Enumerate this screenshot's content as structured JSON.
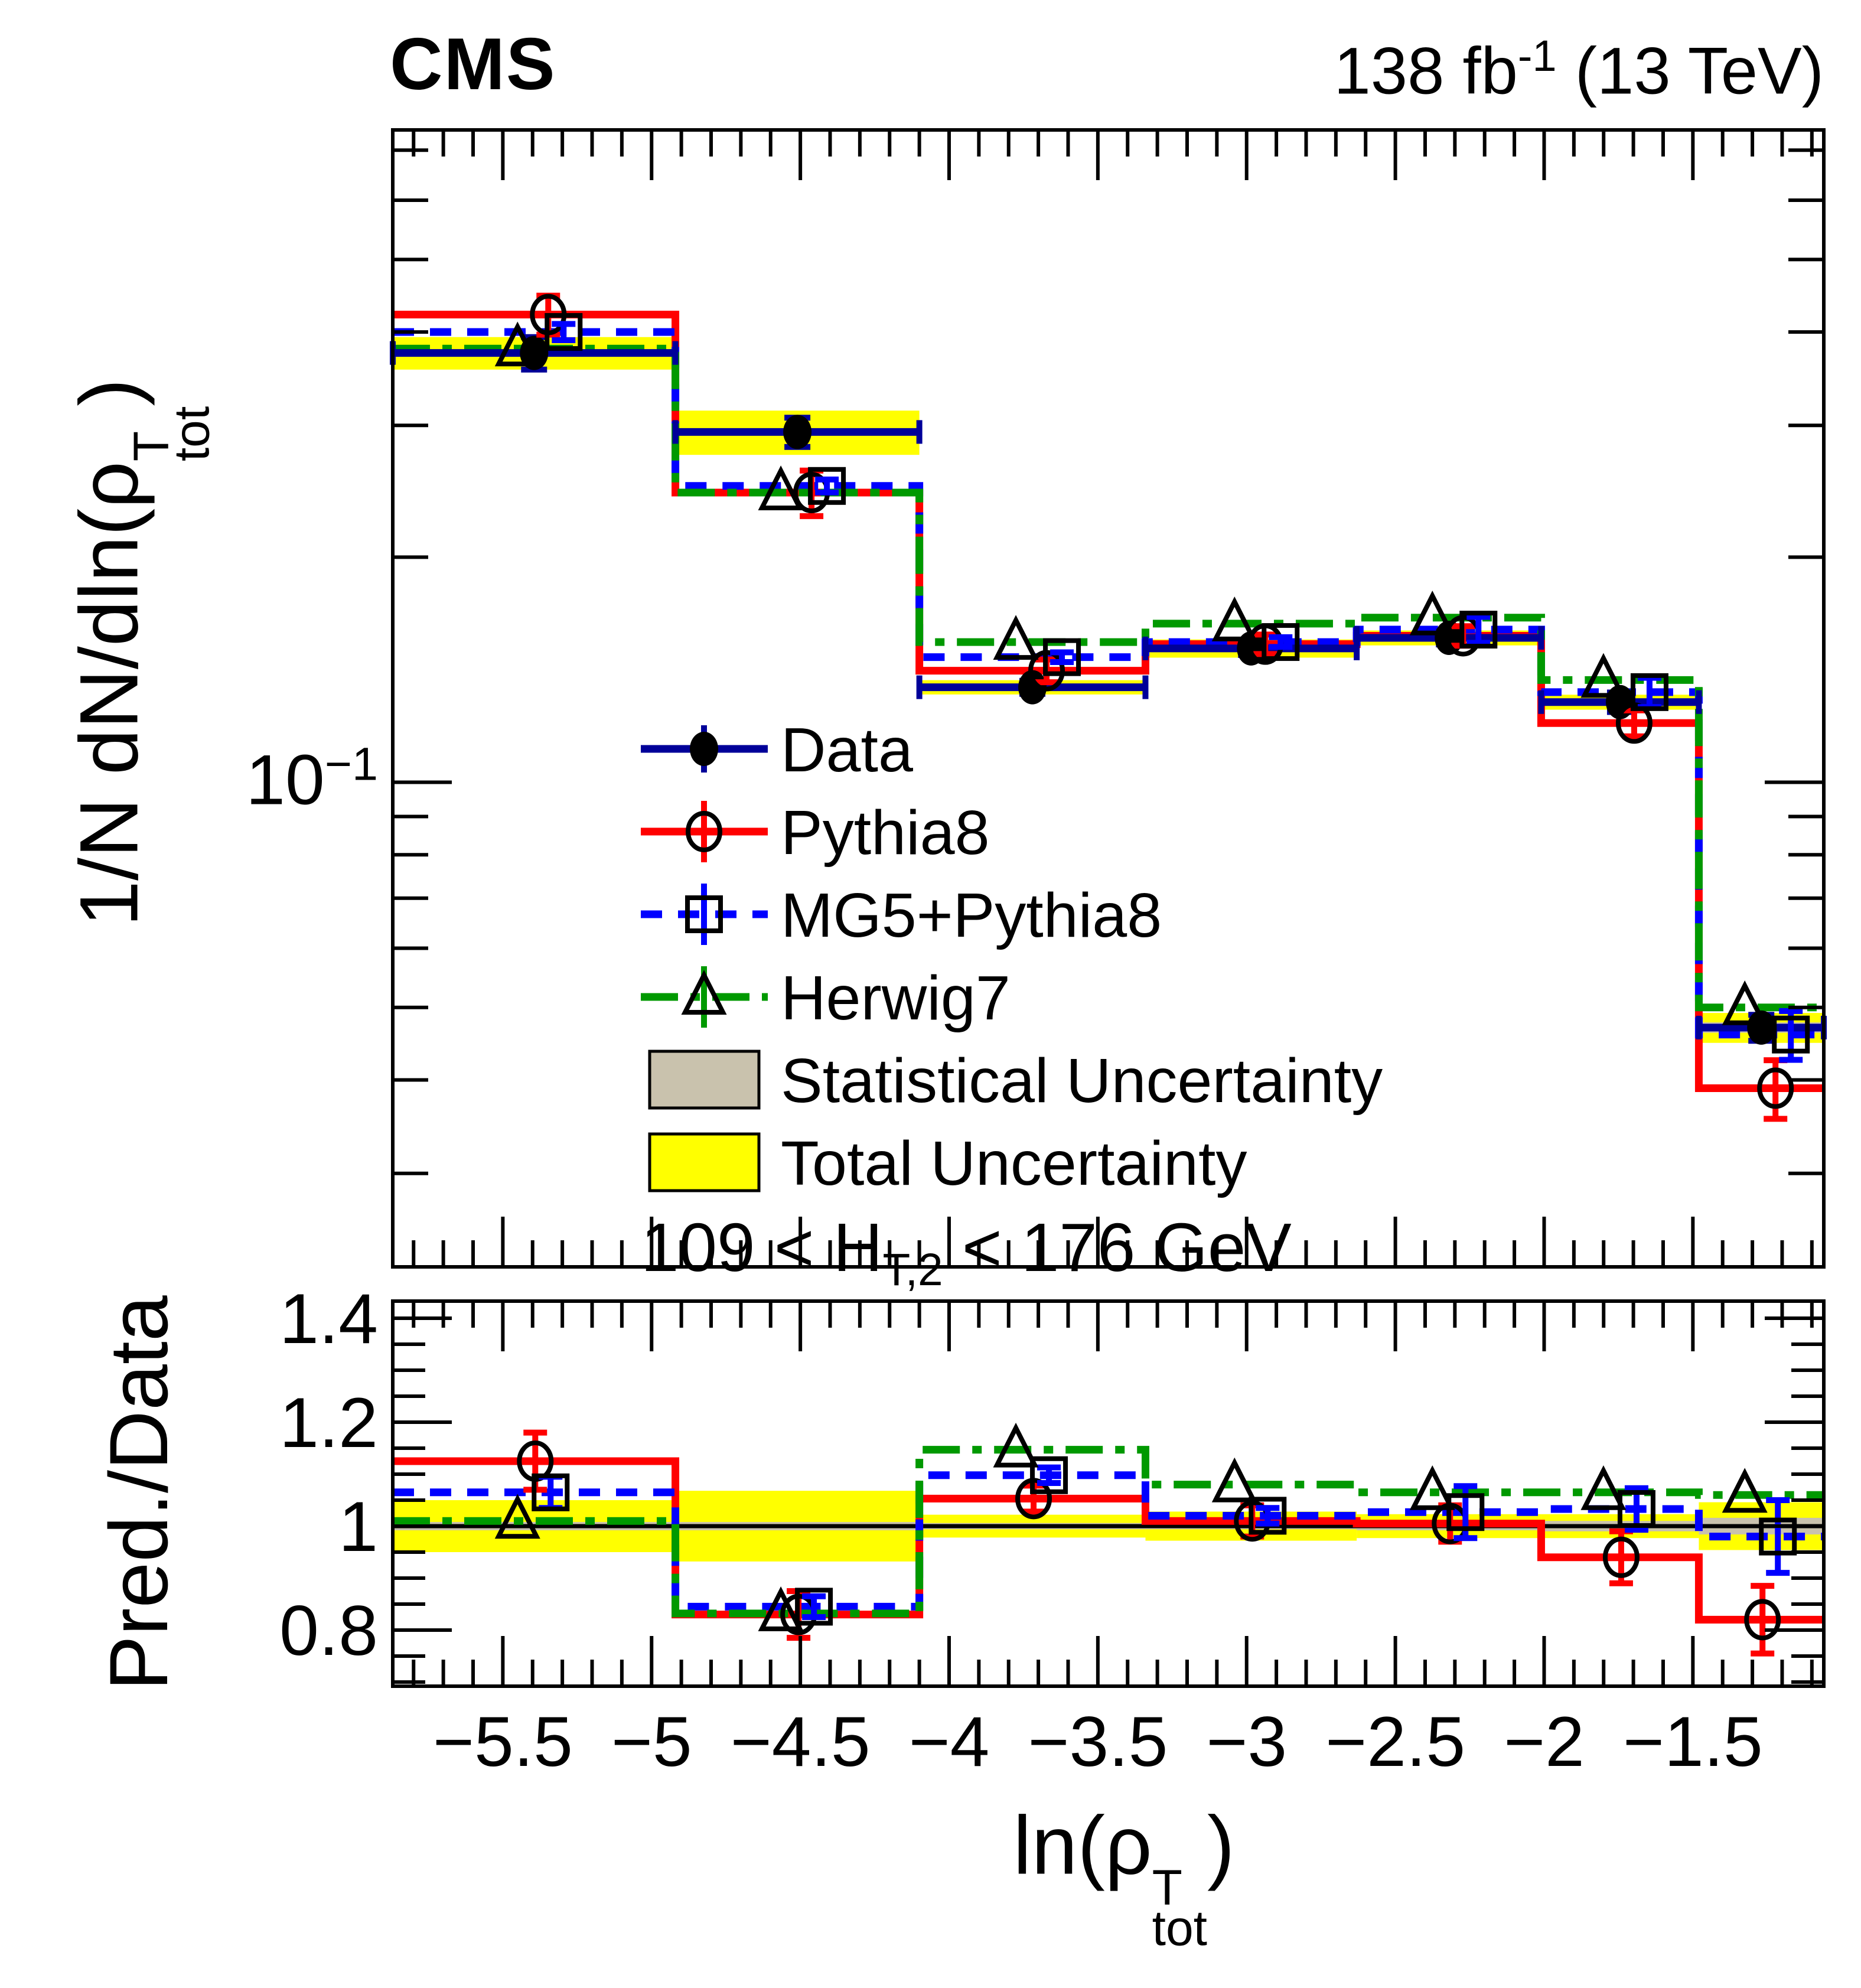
{
  "header": {
    "experiment": "CMS",
    "lumi_parts": {
      "prefix": "138 fb",
      "exp": "-1",
      "suffix": " (13 TeV)"
    }
  },
  "selection_parts": {
    "prefix": "109 < H",
    "sub": "T,2",
    "suffix": " < 176 GeV"
  },
  "chart_data": {
    "type": "histogram-with-ratio",
    "top_y_scale": "log",
    "x_title_parts": {
      "prefix": "ln(",
      "symbol": "ρ",
      "sup": "T",
      "sub": "tot",
      "suffix": ")"
    },
    "top_y_title_parts": {
      "prefix": "1/N dN/dln(",
      "symbol": "ρ",
      "sup": "T",
      "sub": "tot",
      "suffix": ")"
    },
    "ratio_y_title": "Pred./Data",
    "top_y_tick_parts": {
      "base": "10",
      "exp": "−1"
    },
    "x_range": [
      -5.87,
      -1.06
    ],
    "top_y_range": [
      0.0225,
      0.745
    ],
    "ratio_range": [
      0.692,
      1.433
    ],
    "bin_edges": [
      -5.87,
      -4.92,
      -4.1,
      -3.34,
      -2.63,
      -2.01,
      -1.48,
      -1.06
    ],
    "x_major_ticks": [
      {
        "value": -5.5,
        "label": "−5.5"
      },
      {
        "value": -5.0,
        "label": "−5"
      },
      {
        "value": -4.5,
        "label": "−4.5"
      },
      {
        "value": -4.0,
        "label": "−4"
      },
      {
        "value": -3.5,
        "label": "−3.5"
      },
      {
        "value": -3.0,
        "label": "−3"
      },
      {
        "value": -2.5,
        "label": "−2.5"
      },
      {
        "value": -2.0,
        "label": "−2"
      },
      {
        "value": -1.5,
        "label": "−1.5"
      }
    ],
    "x_minor_step": 0.1,
    "top_major_tick_value": 0.1,
    "top_minor_ticks": [
      0.03,
      0.04,
      0.05,
      0.06,
      0.07,
      0.08,
      0.09,
      0.2,
      0.3,
      0.4,
      0.5,
      0.6,
      0.7
    ],
    "ratio_major_ticks": [
      {
        "value": 0.8,
        "label": "0.8"
      },
      {
        "value": 1.0,
        "label": "1"
      },
      {
        "value": 1.2,
        "label": "1.2"
      },
      {
        "value": 1.4,
        "label": "1.4"
      }
    ],
    "ratio_minor_step": 0.05,
    "series": [
      {
        "name": "Data",
        "role": "data",
        "color": "#000099",
        "marker": "filled-circle",
        "values": [
          0.375,
          0.294,
          0.134,
          0.151,
          0.156,
          0.128,
          0.047
        ],
        "err_frac": [
          0.05,
          0.045,
          0.02,
          0.02,
          0.02,
          0.03,
          0.04
        ]
      },
      {
        "name": "Pythia8",
        "role": "mc",
        "color": "#ff0000",
        "line": "solid",
        "marker": "open-circle",
        "values": [
          0.422,
          0.244,
          0.141,
          0.153,
          0.157,
          0.12,
          0.039
        ],
        "err_frac": [
          0.06,
          0.07,
          0.035,
          0.03,
          0.03,
          0.04,
          0.09
        ],
        "ratio": [
          1.125,
          0.83,
          1.053,
          1.01,
          1.005,
          0.94,
          0.82
        ],
        "ratio_err": [
          0.055,
          0.045,
          0.025,
          0.03,
          0.035,
          0.05,
          0.065
        ]
      },
      {
        "name": "MG5+Pythia8",
        "role": "mc",
        "color": "#0000ff",
        "line": "dashed",
        "marker": "open-square",
        "values": [
          0.4,
          0.249,
          0.147,
          0.154,
          0.16,
          0.132,
          0.046
        ],
        "err_frac": [
          0.025,
          0.02,
          0.015,
          0.015,
          0.04,
          0.045,
          0.075
        ],
        "ratio": [
          1.065,
          0.845,
          1.098,
          1.02,
          1.027,
          1.033,
          0.98
        ],
        "ratio_err": [
          0.03,
          0.02,
          0.015,
          0.015,
          0.05,
          0.04,
          0.07
        ]
      },
      {
        "name": "Herwig7",
        "role": "mc",
        "color": "#009900",
        "line": "dashdot",
        "marker": "open-triangle",
        "values": [
          0.38,
          0.244,
          0.154,
          0.163,
          0.166,
          0.137,
          0.05
        ],
        "err_frac": [
          0,
          0,
          0,
          0,
          0,
          0,
          0
        ],
        "ratio": [
          1.01,
          0.832,
          1.147,
          1.08,
          1.065,
          1.065,
          1.06
        ],
        "ratio_err": [
          0,
          0,
          0,
          0,
          0,
          0,
          0
        ]
      }
    ],
    "uncertainties": {
      "stat": {
        "label": "Statistical Uncertainty",
        "color": "#c9c2ad",
        "frac": [
          0.008,
          0.008,
          0.006,
          0.006,
          0.008,
          0.01,
          0.016
        ]
      },
      "total": {
        "label": "Total Uncertainty",
        "color": "#ffff00",
        "frac": [
          0.05,
          0.068,
          0.022,
          0.028,
          0.023,
          0.023,
          0.046
        ]
      }
    }
  }
}
